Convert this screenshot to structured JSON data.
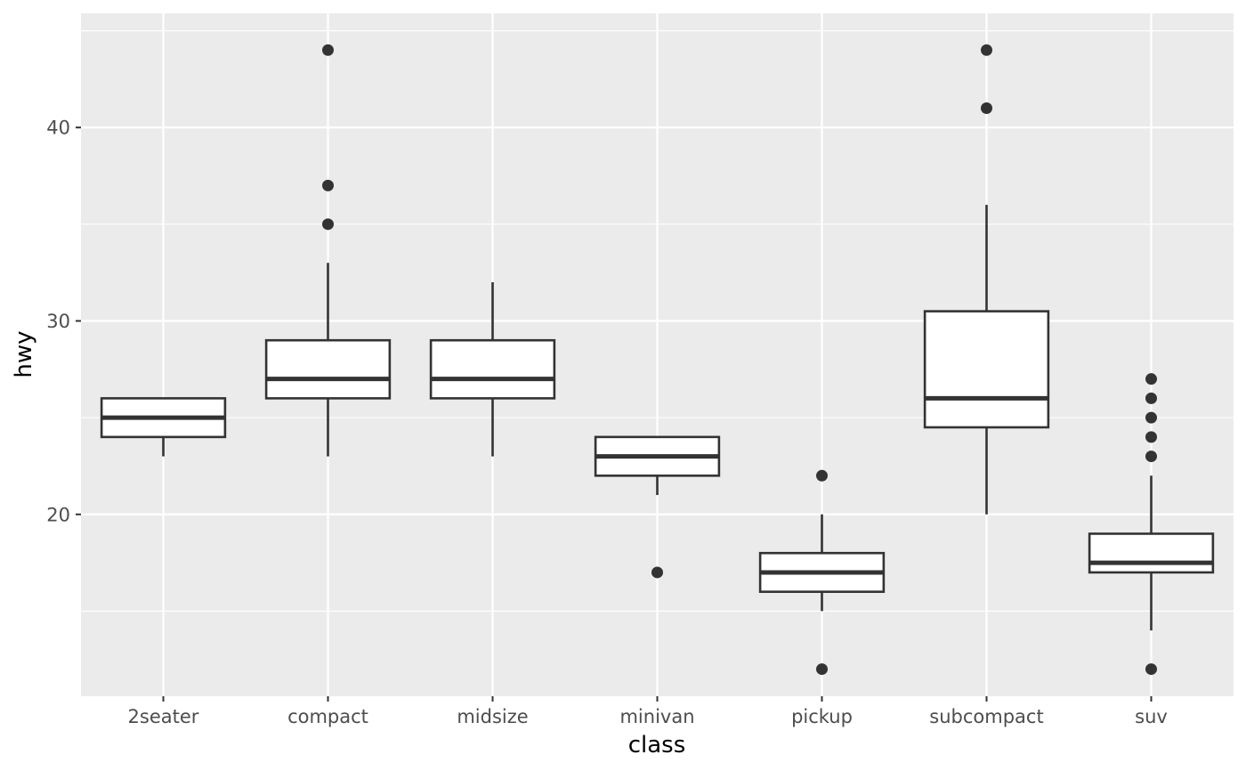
{
  "chart_data": {
    "type": "boxplot",
    "title": "",
    "xlabel": "class",
    "ylabel": "hwy",
    "ylim": [
      10.6,
      45.9
    ],
    "y_ticks": [
      20,
      30,
      40
    ],
    "y_tick_labels": [
      "20",
      "30",
      "40"
    ],
    "grid": true,
    "colors": {
      "panel": "#ebebeb",
      "grid": "#ffffff",
      "box_fill": "#ffffff",
      "box_stroke": "#333333",
      "outlier": "#333333",
      "tick_text": "#4d4d4d",
      "tick_mark": "#333333"
    },
    "categories": [
      "2seater",
      "compact",
      "midsize",
      "minivan",
      "pickup",
      "subcompact",
      "suv"
    ],
    "boxes": [
      {
        "category": "2seater",
        "whisker_low": 23,
        "q1": 24,
        "median": 25,
        "q3": 26,
        "whisker_high": 26,
        "outliers": []
      },
      {
        "category": "compact",
        "whisker_low": 23,
        "q1": 26,
        "median": 27,
        "q3": 29,
        "whisker_high": 33,
        "outliers": [
          35,
          37,
          44
        ]
      },
      {
        "category": "midsize",
        "whisker_low": 23,
        "q1": 26,
        "median": 27,
        "q3": 29,
        "whisker_high": 32,
        "outliers": []
      },
      {
        "category": "minivan",
        "whisker_low": 21,
        "q1": 22,
        "median": 23,
        "q3": 24,
        "whisker_high": 24,
        "outliers": [
          17
        ]
      },
      {
        "category": "pickup",
        "whisker_low": 15,
        "q1": 16,
        "median": 17,
        "q3": 18,
        "whisker_high": 20,
        "outliers": [
          12,
          22
        ]
      },
      {
        "category": "subcompact",
        "whisker_low": 20,
        "q1": 24.5,
        "median": 26,
        "q3": 30.5,
        "whisker_high": 36,
        "outliers": [
          41,
          44
        ]
      },
      {
        "category": "suv",
        "whisker_low": 14,
        "q1": 17,
        "median": 17.5,
        "q3": 19,
        "whisker_high": 22,
        "outliers": [
          12,
          23,
          24,
          25,
          26,
          27
        ]
      }
    ]
  }
}
